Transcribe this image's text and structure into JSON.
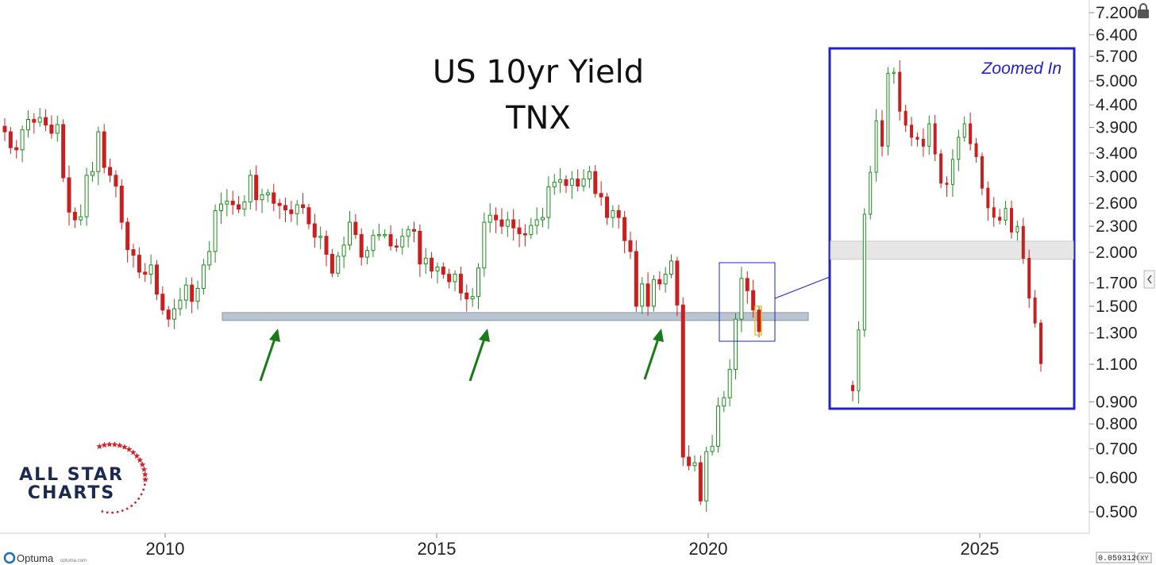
{
  "chart_data": [
    {
      "type": "candlestick",
      "title": "US 10yr Yield",
      "subtitle": "TNX",
      "scale": "log",
      "ylim": [
        0.45,
        7.2
      ],
      "yticks": [
        "7.200",
        "6.400",
        "5.700",
        "5.000",
        "4.400",
        "3.900",
        "3.400",
        "3.000",
        "2.600",
        "2.300",
        "2.000",
        "1.700",
        "1.500",
        "1.300",
        "1.100",
        "0.900",
        "0.800",
        "0.700",
        "0.600",
        "0.500"
      ],
      "xticks": [
        "2010",
        "2015",
        "2020",
        "2025"
      ],
      "support_zone": [
        1.39,
        1.45
      ],
      "annotations": [
        "support-arrow-2012",
        "support-arrow-2016",
        "support-arrow-2019"
      ],
      "series": [
        {
          "values": [
            3.81,
            3.5,
            3.46,
            3.85,
            4.07,
            4.01,
            4.11,
            3.95,
            3.78,
            3.96,
            2.98,
            2.48,
            2.38,
            2.42,
            3.02,
            3.08,
            3.81,
            3.15,
            3.02,
            2.85,
            2.35,
            2.03,
            1.97,
            1.8,
            1.78,
            1.87,
            1.6,
            1.47,
            1.4,
            1.48,
            1.55,
            1.68,
            1.54,
            1.65,
            1.87,
            2.01,
            2.5,
            2.59,
            2.63,
            2.58,
            2.52,
            2.62,
            3.02,
            2.65,
            2.72,
            2.75,
            2.6,
            2.57,
            2.51,
            2.46,
            2.58,
            2.54,
            2.33,
            2.17,
            2.18,
            1.98,
            1.79,
            1.96,
            2.08,
            2.35,
            2.2,
            1.95,
            2.02,
            2.19,
            2.2,
            2.2,
            2.07,
            2.06,
            2.18,
            2.26,
            2.24,
            1.88,
            1.94,
            1.81,
            1.85,
            1.78,
            1.71,
            1.78,
            1.61,
            1.56,
            1.58,
            1.84,
            2.35,
            2.44,
            2.38,
            2.3,
            2.38,
            2.28,
            2.21,
            2.2,
            2.31,
            2.38,
            2.41,
            2.84,
            2.91,
            2.95,
            2.86,
            2.96,
            2.85,
            2.96,
            3.08,
            2.74,
            2.69,
            2.41,
            2.5,
            2.41,
            2.13,
            2.01,
            1.5,
            1.69,
            1.5,
            1.73,
            1.69,
            1.78,
            1.91,
            1.51,
            0.67,
            0.64,
            0.65,
            0.53,
            0.69,
            0.71,
            0.88,
            0.92,
            1.07,
            1.4,
            1.74,
            1.63,
            1.47,
            1.31
          ]
        }
      ],
      "zoom_inset": {
        "label": "Zoomed In",
        "support_zone": [
          1.92,
          2.12
        ],
        "values": [
          0.93,
          1.3,
          2.46,
          3.1,
          4.12,
          3.58,
          5.35,
          5.38,
          4.34,
          4.02,
          3.76,
          3.72,
          3.58,
          4.05,
          3.43,
          2.92,
          2.9,
          3.33,
          3.76,
          4.05,
          3.63,
          3.38,
          2.84,
          2.55,
          2.42,
          2.38,
          2.54,
          2.23,
          2.3,
          1.93,
          1.55,
          1.35,
          1.08
        ]
      }
    }
  ],
  "brand": {
    "line1": "ALL STAR",
    "line2": "CHARTS"
  },
  "footer": {
    "platform": "Optuma",
    "platform_url": "optuma.com",
    "readout": "0.0593120",
    "xy_badge": "XY"
  },
  "colors": {
    "up": "#1f8c1f",
    "down": "#c8201e",
    "support_zone": "#b8c4d0",
    "zoom_border": "#2121c8",
    "arrow": "#1a7a1a",
    "brand_red": "#d11f2a",
    "brand_navy": "#1c2a52"
  }
}
